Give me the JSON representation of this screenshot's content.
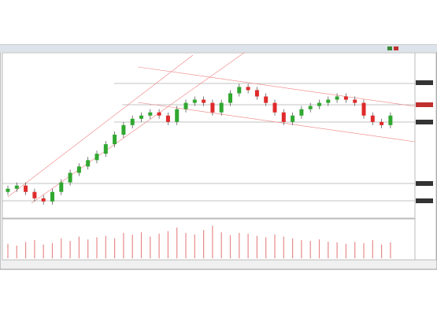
{
  "chart_data": {
    "type": "candlestick",
    "open": [
      14,
      16,
      18,
      14,
      10,
      8,
      14,
      20,
      26,
      30,
      34,
      38,
      44,
      50,
      56,
      60,
      62,
      64,
      62,
      58,
      66,
      70,
      72,
      70,
      64,
      70,
      76,
      80,
      78,
      74,
      70,
      64,
      58,
      62,
      66,
      68,
      70,
      72,
      74,
      72,
      70,
      62,
      58,
      56
    ],
    "high": [
      18,
      20,
      20,
      16,
      12,
      16,
      22,
      28,
      32,
      36,
      40,
      46,
      52,
      58,
      62,
      64,
      66,
      66,
      64,
      68,
      72,
      74,
      74,
      72,
      72,
      78,
      82,
      82,
      80,
      76,
      72,
      66,
      64,
      68,
      70,
      72,
      74,
      76,
      76,
      74,
      72,
      64,
      60,
      64
    ],
    "low": [
      12,
      14,
      12,
      8,
      6,
      6,
      12,
      18,
      24,
      28,
      32,
      36,
      42,
      48,
      54,
      58,
      60,
      60,
      56,
      56,
      64,
      68,
      68,
      62,
      62,
      68,
      74,
      76,
      72,
      68,
      62,
      56,
      56,
      60,
      64,
      66,
      68,
      70,
      70,
      68,
      60,
      56,
      54,
      54
    ],
    "close": [
      16,
      18,
      14,
      10,
      8,
      14,
      20,
      26,
      30,
      34,
      38,
      44,
      50,
      56,
      60,
      62,
      64,
      62,
      58,
      66,
      70,
      72,
      70,
      64,
      70,
      76,
      80,
      78,
      74,
      70,
      64,
      58,
      62,
      66,
      68,
      70,
      72,
      74,
      72,
      70,
      62,
      58,
      56,
      62
    ],
    "up_color": "#2fa82f",
    "down_color": "#e02a2a",
    "ylim": [
      0,
      100
    ],
    "volume": [
      40,
      35,
      45,
      50,
      38,
      42,
      55,
      48,
      60,
      52,
      58,
      62,
      55,
      70,
      65,
      72,
      60,
      68,
      75,
      85,
      70,
      66,
      78,
      90,
      72,
      64,
      70,
      68,
      62,
      58,
      66,
      60,
      55,
      50,
      48,
      52,
      46,
      44,
      40,
      45,
      42,
      50,
      38,
      44
    ],
    "volume_color": "#e88a8a",
    "volume_ylim": [
      0,
      100
    ]
  }
}
